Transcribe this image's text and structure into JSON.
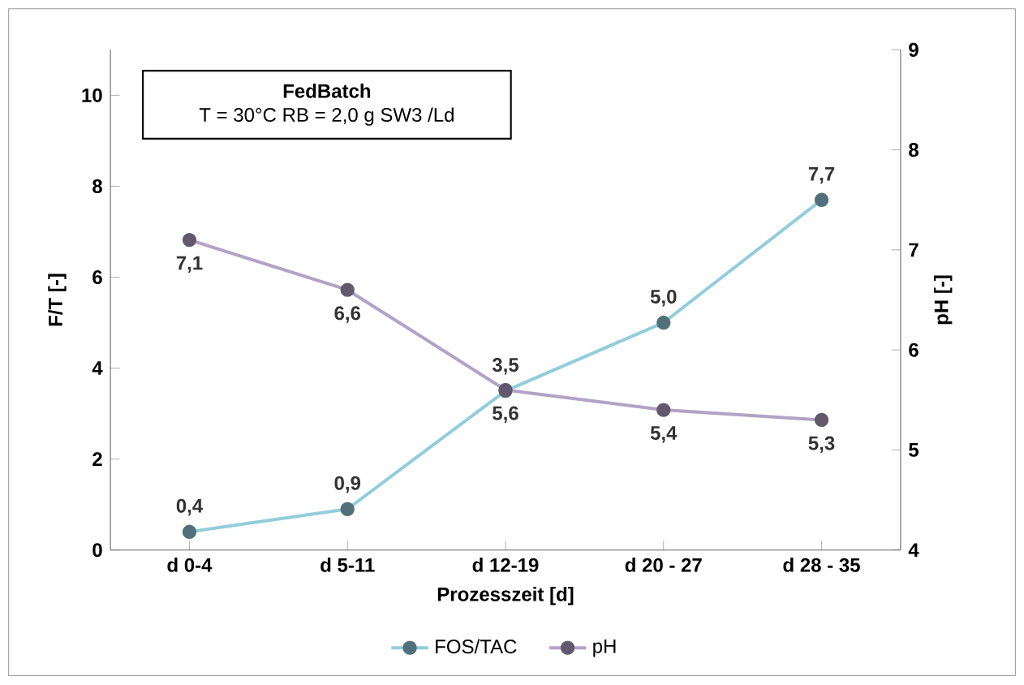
{
  "chart_data": {
    "type": "line",
    "title": "FedBatch",
    "subtitle": "T = 30°C  RB = 2,0 g SW3 /Ld",
    "xlabel": "Prozesszeit [d]",
    "ylabel": "F/T [-]",
    "y2label": "pH [-]",
    "categories": [
      "d 0-4",
      "d 5-11",
      "d 12-19",
      "d 20 - 27",
      "d 28 - 35"
    ],
    "series": [
      {
        "name": "FOS/TAC",
        "color": "#92cddc",
        "values": [
          0.4,
          0.9,
          3.5,
          5.0,
          7.7
        ],
        "value_labels": [
          "0,4",
          "0,9",
          "3,5",
          "5,0",
          "7,7"
        ]
      },
      {
        "name": "pH",
        "color": "#b3a2c7",
        "axis": "y2",
        "values": [
          7.1,
          6.6,
          5.6,
          5.4,
          5.3
        ],
        "value_labels": [
          "7,1",
          "6,6",
          "5,6",
          "5,4",
          "5,3"
        ]
      }
    ],
    "ylim": [
      0,
      11
    ],
    "yticks": [
      0,
      2,
      4,
      6,
      8,
      10
    ],
    "y2lim": [
      4,
      9
    ],
    "y2ticks": [
      4,
      5,
      6,
      7,
      8,
      9
    ],
    "grid": false,
    "legend": "bottom",
    "marker": "circle",
    "line_style": "solid"
  }
}
